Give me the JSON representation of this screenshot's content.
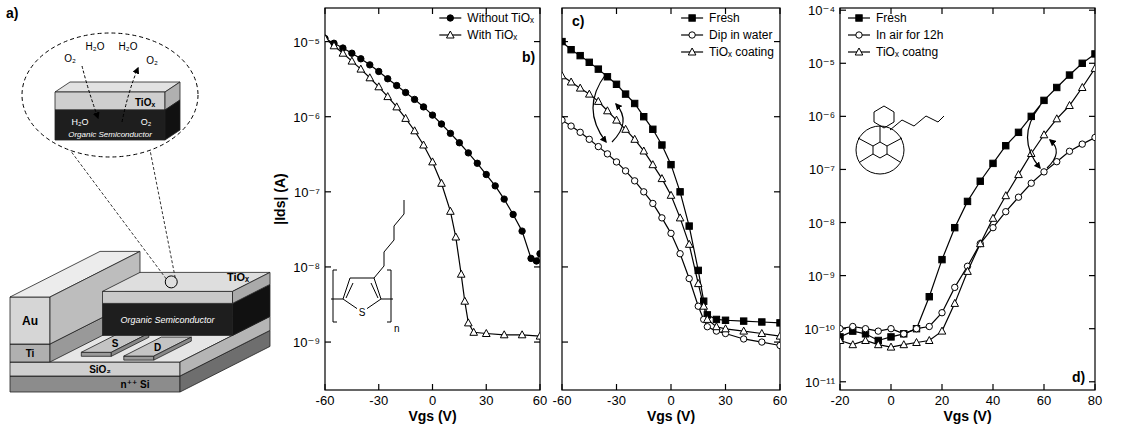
{
  "diagram": {
    "panel_label": "a)",
    "device": {
      "top_contact": "Au",
      "adhesion_layer": "Ti",
      "encapsulation": "TiOₓ",
      "semiconductor": "Organic Semiconductor",
      "source": "S",
      "drain": "D",
      "dielectric": "SiO₂",
      "gate": "n⁺⁺ Si"
    },
    "inset": {
      "top_layer": "TiOₓ",
      "bottom_layer": "Organic Semiconductor",
      "ambient": [
        "O₂",
        "H₂O",
        "H₂O",
        "O₂"
      ],
      "absorbed": [
        "H₂O",
        "O₂"
      ]
    }
  },
  "chart_data": [
    {
      "type": "line",
      "panel_label": "b)",
      "x_label": "Vgs (V)",
      "y_label": "|Ids| (A)",
      "log": "y",
      "grid": false,
      "legend": "upper right",
      "annotations": [
        "S",
        "n"
      ],
      "xlim": [
        -60,
        60
      ],
      "xticks": [
        -60,
        -30,
        0,
        30,
        60
      ],
      "ylim": [
        2.3e-10,
        2.8e-05
      ],
      "yticks": [
        {
          "value": 1e-09,
          "label": "10⁻⁹"
        },
        {
          "value": 1e-08,
          "label": "10⁻⁸"
        },
        {
          "value": 1e-07,
          "label": "10⁻⁷"
        },
        {
          "value": 1e-06,
          "label": "10⁻⁶"
        },
        {
          "value": 1e-05,
          "label": "10⁻⁵"
        }
      ],
      "series": [
        {
          "name": "Without TiOₓ",
          "color": "#000000",
          "marker": "filled-circle",
          "line_style": "solid",
          "x": [
            -60,
            -55,
            -50,
            -45,
            -40,
            -35,
            -30,
            -25,
            -20,
            -15,
            -10,
            -5,
            0,
            5,
            10,
            15,
            20,
            25,
            30,
            35,
            40,
            45,
            50,
            55,
            58,
            60
          ],
          "values": [
            1.1e-05,
            9.5e-06,
            8.2e-06,
            7e-06,
            5.9e-06,
            4.9e-06,
            4e-06,
            3.2e-06,
            2.6e-06,
            2.1e-06,
            1.7e-06,
            1.35e-06,
            1.05e-06,
            8e-07,
            6e-07,
            4.5e-07,
            3.3e-07,
            2.4e-07,
            1.7e-07,
            1.2e-07,
            8e-08,
            5e-08,
            3e-08,
            1.3e-08,
            1.2e-08,
            1.5e-08
          ]
        },
        {
          "name": "With TiOₓ",
          "color": "#000000",
          "marker": "open-triangle",
          "line_style": "solid",
          "x": [
            -60,
            -55,
            -50,
            -45,
            -40,
            -35,
            -30,
            -25,
            -20,
            -15,
            -10,
            -5,
            0,
            5,
            10,
            13,
            16,
            18,
            20,
            23,
            30,
            40,
            50,
            60
          ],
          "values": [
            1.1e-05,
            8.8e-06,
            7e-06,
            5.5e-06,
            4.3e-06,
            3.3e-06,
            2.5e-06,
            1.85e-06,
            1.35e-06,
            9.5e-07,
            6.5e-07,
            4.2e-07,
            2.5e-07,
            1.3e-07,
            5.5e-08,
            2.5e-08,
            8e-09,
            3.5e-09,
            1.8e-09,
            1.35e-09,
            1.3e-09,
            1.25e-09,
            1.25e-09,
            1.2e-09
          ]
        }
      ]
    },
    {
      "type": "line",
      "panel_label": "c)",
      "x_label": "Vgs (V)",
      "log": "y",
      "grid": false,
      "legend": "upper right",
      "tick_labels": "x",
      "xlim": [
        -60,
        60
      ],
      "xticks": [
        -60,
        -30,
        0,
        30,
        60
      ],
      "ylim": [
        2.3e-10,
        2.8e-05
      ],
      "yticks": [
        1e-09,
        1e-08,
        1e-07,
        1e-06,
        1e-05
      ],
      "x": [
        -60,
        -55,
        -50,
        -45,
        -40,
        -35,
        -30,
        -25,
        -20,
        -15,
        -10,
        -5,
        0,
        5,
        10,
        15,
        18,
        20,
        25,
        30,
        40,
        50,
        60
      ],
      "series": [
        {
          "name": "Fresh",
          "color": "#000000",
          "marker": "filled-square",
          "line_style": "solid",
          "values": [
            1e-05,
            7.8e-06,
            6.5e-06,
            5.3e-06,
            4.3e-06,
            3.4e-06,
            2.7e-06,
            2e-06,
            1.5e-06,
            1e-06,
            6.8e-07,
            4.2e-07,
            2.3e-07,
            1e-07,
            3.5e-08,
            9e-09,
            3.5e-09,
            2.3e-09,
            2e-09,
            1.95e-09,
            1.9e-09,
            1.85e-09,
            1.8e-09
          ]
        },
        {
          "name": "Dip in water",
          "color": "#000000",
          "marker": "open-circle",
          "line_style": "solid",
          "values": [
            9e-07,
            7.5e-07,
            6.2e-07,
            5e-07,
            4e-07,
            3.2e-07,
            2.5e-07,
            1.9e-07,
            1.4e-07,
            1e-07,
            7e-08,
            4.5e-08,
            2.8e-08,
            1.5e-08,
            7e-09,
            3e-09,
            2e-09,
            1.6e-09,
            1.4e-09,
            1.3e-09,
            1.1e-09,
            1e-09,
            9e-10
          ]
        },
        {
          "name": "TiOₓ coating",
          "color": "#000000",
          "marker": "open-triangle",
          "line_style": "solid",
          "values": [
            3.5e-06,
            2.9e-06,
            2.4e-06,
            2e-06,
            1.6e-06,
            1.2e-06,
            9e-07,
            6.8e-07,
            5e-07,
            3.5e-07,
            2.3e-07,
            1.5e-07,
            9e-08,
            4.5e-08,
            2e-08,
            6e-09,
            3e-09,
            2e-09,
            1.6e-09,
            1.5e-09,
            1.4e-09,
            1.3e-09,
            1.2e-09
          ]
        }
      ]
    },
    {
      "type": "line",
      "panel_label": "d)",
      "x_label": "Vgs (V)",
      "log": "y",
      "grid": false,
      "legend": "upper left",
      "xlim": [
        -20,
        80
      ],
      "xticks": [
        -20,
        0,
        20,
        40,
        60,
        80
      ],
      "ylim": [
        7e-12,
        0.00011
      ],
      "yticks": [
        {
          "value": 1e-11,
          "label": "10⁻¹¹"
        },
        {
          "value": 1e-10,
          "label": "10⁻¹⁰"
        },
        {
          "value": 1e-09,
          "label": "10⁻⁹"
        },
        {
          "value": 1e-08,
          "label": "10⁻⁸"
        },
        {
          "value": 1e-07,
          "label": "10⁻⁷"
        },
        {
          "value": 1e-06,
          "label": "10⁻⁶"
        },
        {
          "value": 1e-05,
          "label": "10⁻⁵"
        },
        {
          "value": 0.0001,
          "label": "10⁻⁴"
        }
      ],
      "x": [
        -20,
        -15,
        -10,
        -5,
        0,
        5,
        10,
        15,
        20,
        25,
        30,
        35,
        40,
        45,
        50,
        55,
        60,
        65,
        70,
        75,
        80
      ],
      "series": [
        {
          "name": "Fresh",
          "color": "#000000",
          "marker": "filled-square",
          "line_style": "solid",
          "values": [
            7e-11,
            9e-11,
            8e-11,
            6e-11,
            7e-11,
            8e-11,
            1e-10,
            4e-10,
            2e-09,
            8e-09,
            2.5e-08,
            6e-08,
            1.3e-07,
            2.8e-07,
            5e-07,
            1e-06,
            2e-06,
            3.5e-06,
            6e-06,
            1e-05,
            1.5e-05
          ]
        },
        {
          "name": "In air for 12h",
          "color": "#000000",
          "marker": "open-circle",
          "line_style": "solid",
          "values": [
            1e-10,
            1.1e-10,
            1e-10,
            9e-11,
            1e-10,
            8e-11,
            1e-10,
            1.1e-10,
            2e-10,
            6e-10,
            1.5e-09,
            4e-09,
            8e-09,
            1.6e-08,
            3e-08,
            5.5e-08,
            9e-08,
            1.4e-07,
            2.2e-07,
            3e-07,
            4e-07
          ]
        },
        {
          "name": "TiOₓ coatng",
          "color": "#000000",
          "marker": "open-triangle",
          "line_style": "solid",
          "values": [
            6e-11,
            5e-11,
            6e-11,
            5e-11,
            4.5e-11,
            5e-11,
            5.5e-11,
            6e-11,
            9e-11,
            3e-10,
            1.2e-09,
            4e-09,
            1.2e-08,
            3.2e-08,
            8e-08,
            2e-07,
            4.5e-07,
            9e-07,
            1.6e-06,
            3.5e-06,
            8e-06
          ]
        }
      ]
    }
  ]
}
